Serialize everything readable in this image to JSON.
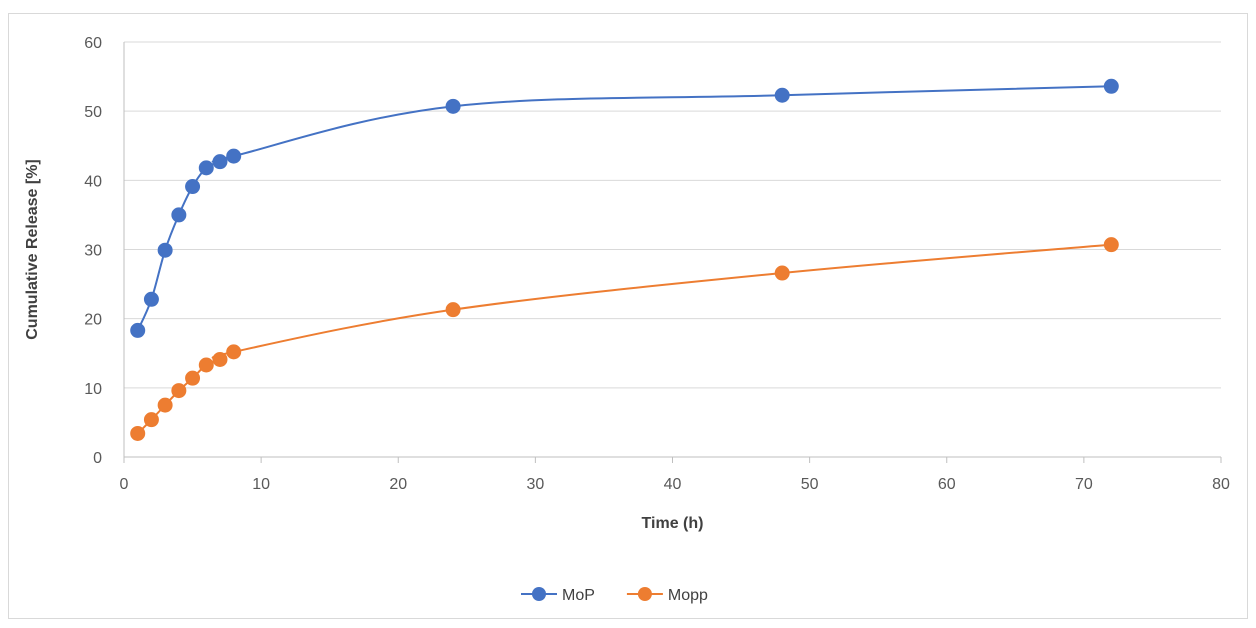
{
  "chart_data": {
    "type": "scatter",
    "title": "",
    "xlabel": "Time (h)",
    "ylabel": "Cumulative Release [%]",
    "xlim": [
      0,
      80
    ],
    "ylim": [
      0,
      60
    ],
    "xticks": [
      0,
      10,
      20,
      30,
      40,
      50,
      60,
      70,
      80
    ],
    "yticks": [
      0,
      10,
      20,
      30,
      40,
      50,
      60
    ],
    "grid": "horizontal",
    "legend": "bottom",
    "lines": "smoothed with markers",
    "series": [
      {
        "name": "MoP",
        "color": "#4472C4",
        "x": [
          1,
          2,
          3,
          4,
          5,
          6,
          7,
          8,
          24,
          48,
          72
        ],
        "y": [
          18.3,
          22.8,
          29.9,
          35.0,
          39.1,
          41.8,
          42.7,
          43.5,
          50.7,
          52.3,
          53.6
        ]
      },
      {
        "name": "Mopp",
        "color": "#ED7D31",
        "x": [
          1,
          2,
          3,
          4,
          5,
          6,
          7,
          8,
          24,
          48,
          72
        ],
        "y": [
          3.4,
          5.4,
          7.5,
          9.6,
          11.4,
          13.3,
          14.1,
          15.2,
          21.3,
          26.6,
          30.7
        ]
      }
    ]
  }
}
